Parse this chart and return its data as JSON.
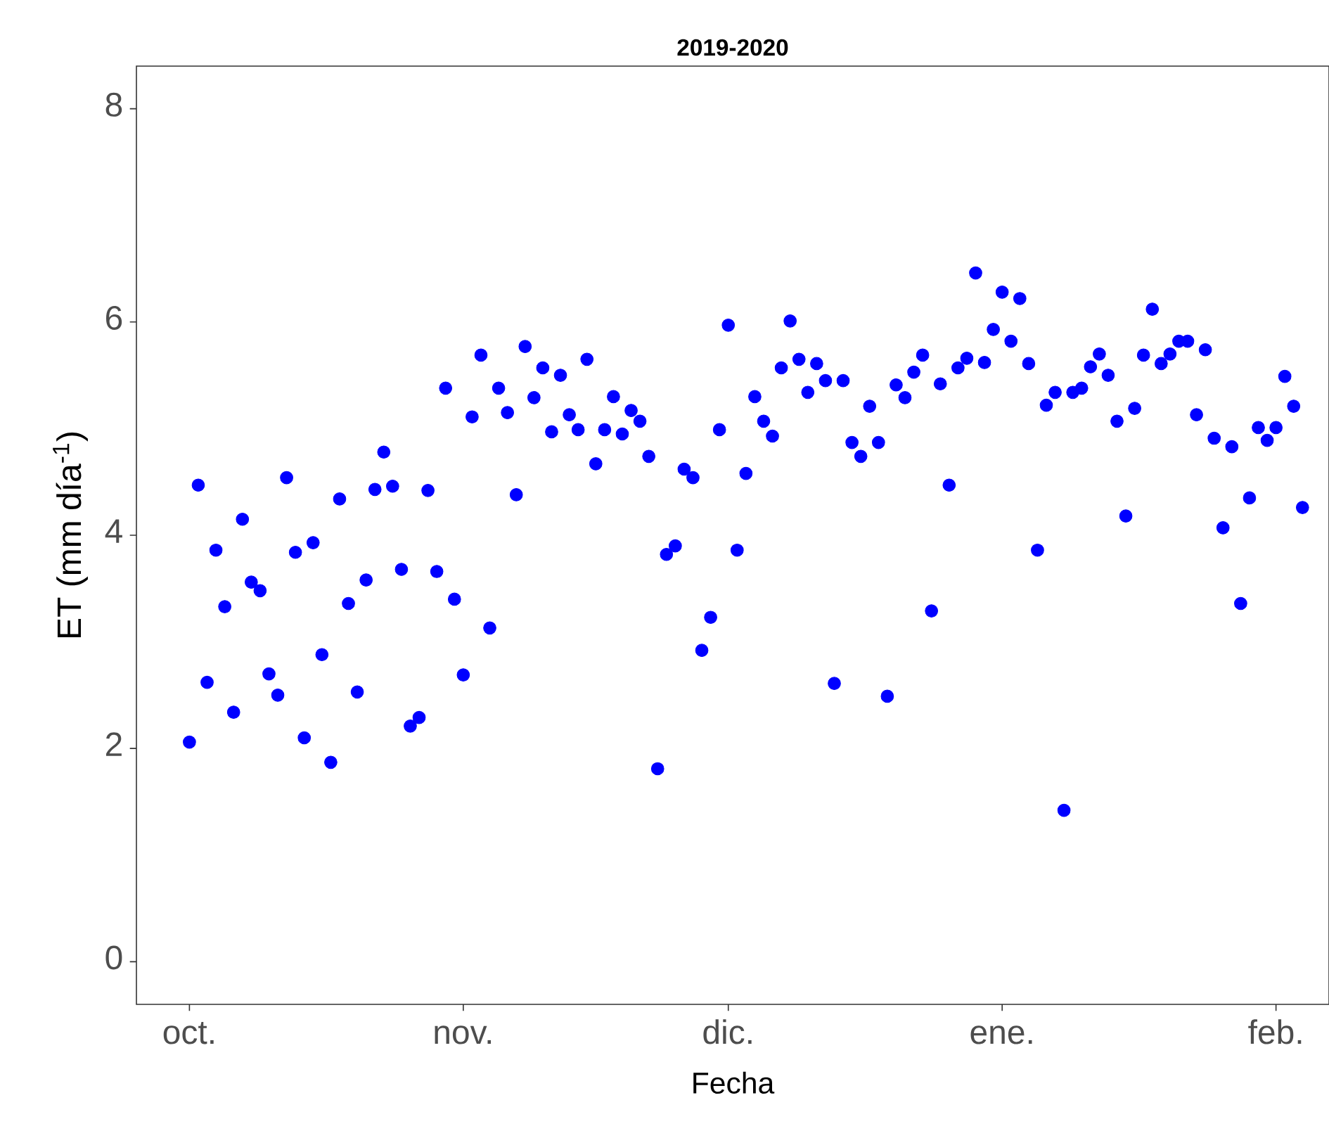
{
  "chart_data": {
    "type": "scatter",
    "title": "2019-2020",
    "xlabel": "Fecha",
    "ylabel": "ET (mm día$^{-1}$)",
    "color": "#0000ff",
    "marker": "circle",
    "x": [
      "2019-10-01",
      "2019-10-02",
      "2019-10-03",
      "2019-10-04",
      "2019-10-05",
      "2019-10-06",
      "2019-10-07",
      "2019-10-08",
      "2019-10-09",
      "2019-10-10",
      "2019-10-11",
      "2019-10-12",
      "2019-10-13",
      "2019-10-14",
      "2019-10-15",
      "2019-10-16",
      "2019-10-17",
      "2019-10-18",
      "2019-10-19",
      "2019-10-20",
      "2019-10-21",
      "2019-10-22",
      "2019-10-23",
      "2019-10-24",
      "2019-10-25",
      "2019-10-26",
      "2019-10-27",
      "2019-10-28",
      "2019-10-29",
      "2019-10-30",
      "2019-10-31",
      "2019-11-01",
      "2019-11-02",
      "2019-11-03",
      "2019-11-04",
      "2019-11-05",
      "2019-11-06",
      "2019-11-07",
      "2019-11-08",
      "2019-11-09",
      "2019-11-10",
      "2019-11-11",
      "2019-11-12",
      "2019-11-13",
      "2019-11-14",
      "2019-11-15",
      "2019-11-16",
      "2019-11-17",
      "2019-11-18",
      "2019-11-19",
      "2019-11-20",
      "2019-11-21",
      "2019-11-22",
      "2019-11-23",
      "2019-11-24",
      "2019-11-25",
      "2019-11-26",
      "2019-11-27",
      "2019-11-28",
      "2019-11-29",
      "2019-11-30",
      "2019-12-01",
      "2019-12-02",
      "2019-12-03",
      "2019-12-04",
      "2019-12-05",
      "2019-12-06",
      "2019-12-07",
      "2019-12-08",
      "2019-12-09",
      "2019-12-10",
      "2019-12-11",
      "2019-12-12",
      "2019-12-13",
      "2019-12-14",
      "2019-12-15",
      "2019-12-16",
      "2019-12-17",
      "2019-12-18",
      "2019-12-19",
      "2019-12-20",
      "2019-12-21",
      "2019-12-22",
      "2019-12-23",
      "2019-12-24",
      "2019-12-25",
      "2019-12-26",
      "2019-12-27",
      "2019-12-28",
      "2019-12-29",
      "2019-12-30",
      "2019-12-31",
      "2020-01-01",
      "2020-01-02",
      "2020-01-03",
      "2020-01-04",
      "2020-01-05",
      "2020-01-06",
      "2020-01-07",
      "2020-01-08",
      "2020-01-09",
      "2020-01-10",
      "2020-01-11",
      "2020-01-12",
      "2020-01-13",
      "2020-01-14",
      "2020-01-15",
      "2020-01-16",
      "2020-01-17",
      "2020-01-18",
      "2020-01-19",
      "2020-01-20",
      "2020-01-21",
      "2020-01-22",
      "2020-01-23",
      "2020-01-24",
      "2020-01-25",
      "2020-01-26",
      "2020-01-27",
      "2020-01-28",
      "2020-01-29",
      "2020-01-30",
      "2020-01-31",
      "2020-02-01",
      "2020-02-02",
      "2020-02-03",
      "2020-02-04"
    ],
    "values": [
      2.06,
      4.47,
      2.62,
      3.86,
      3.33,
      2.34,
      4.15,
      3.56,
      3.48,
      2.7,
      2.5,
      4.54,
      3.84,
      2.1,
      3.93,
      2.88,
      1.87,
      4.34,
      3.36,
      2.53,
      3.58,
      4.43,
      4.78,
      4.46,
      3.68,
      2.21,
      2.29,
      4.42,
      3.66,
      5.38,
      3.4,
      2.69,
      5.11,
      5.69,
      3.13,
      5.38,
      5.15,
      4.38,
      5.77,
      5.29,
      5.57,
      4.97,
      5.5,
      5.13,
      4.99,
      5.65,
      4.67,
      4.99,
      5.3,
      4.95,
      5.17,
      5.07,
      4.74,
      1.81,
      3.82,
      3.9,
      4.62,
      4.54,
      2.92,
      3.23,
      4.99,
      5.97,
      3.86,
      4.58,
      5.3,
      5.07,
      4.93,
      5.57,
      6.01,
      5.65,
      5.34,
      5.61,
      5.45,
      2.61,
      5.45,
      4.87,
      4.74,
      5.21,
      4.87,
      2.49,
      5.41,
      5.29,
      5.53,
      5.69,
      3.29,
      5.42,
      4.47,
      5.57,
      5.66,
      6.46,
      5.62,
      5.93,
      6.28,
      5.82,
      6.22,
      5.61,
      3.86,
      5.22,
      5.34,
      1.42,
      5.34,
      5.38,
      5.58,
      5.7,
      5.5,
      5.07,
      4.18,
      5.19,
      5.69,
      6.12,
      5.61,
      5.7,
      5.82,
      5.82,
      5.13,
      5.74,
      4.91,
      4.07,
      4.83,
      3.36,
      4.35,
      5.01,
      4.89,
      5.01,
      5.49,
      5.21,
      4.26
    ],
    "xlim": [
      "2019-09-25",
      "2020-02-07"
    ],
    "xticks": [
      {
        "value": "2019-10-01",
        "label": "oct."
      },
      {
        "value": "2019-11-01",
        "label": "nov."
      },
      {
        "value": "2019-12-01",
        "label": "dic."
      },
      {
        "value": "2020-01-01",
        "label": "ene."
      },
      {
        "value": "2020-02-01",
        "label": "feb."
      }
    ],
    "ylim": [
      -0.4,
      8.4
    ],
    "yticks": [
      0,
      2,
      4,
      6,
      8
    ]
  }
}
